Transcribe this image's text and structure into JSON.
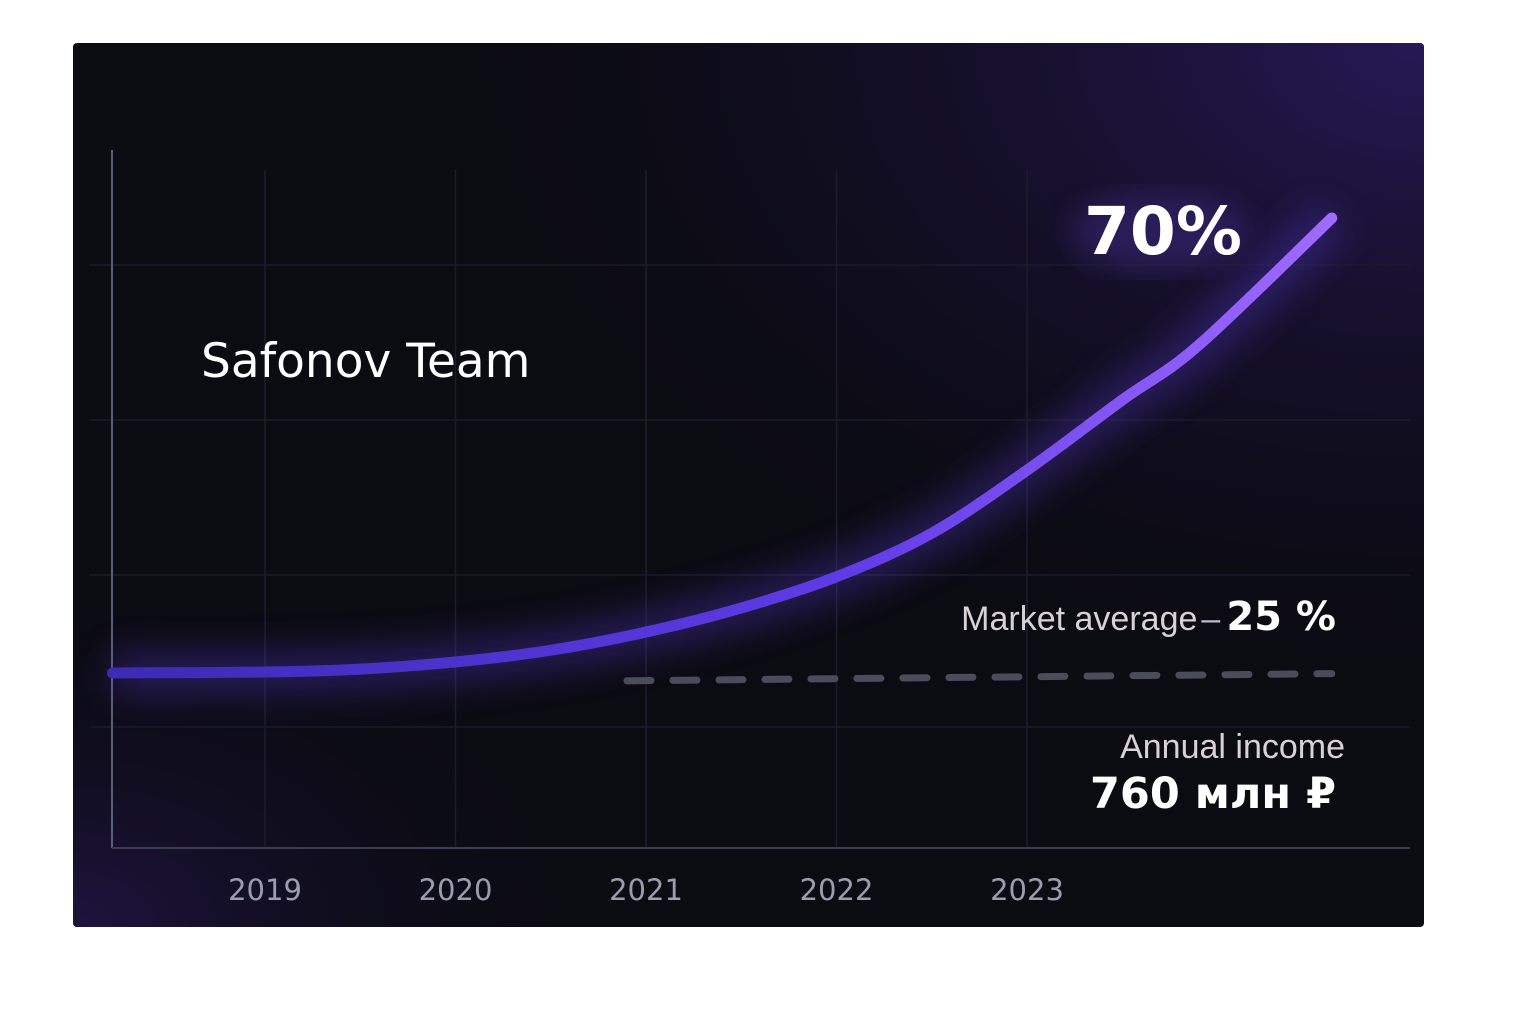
{
  "chart_data": {
    "type": "line",
    "title": "Safonov Team",
    "xlabel": "",
    "ylabel": "",
    "x_ticks": [
      "2019",
      "2020",
      "2021",
      "2022",
      "2023"
    ],
    "xlim": [
      2018.2,
      2024.7
    ],
    "ylim": [
      -26.9,
      80.5
    ],
    "grid": true,
    "series": [
      {
        "name": "Safonov Team",
        "style": "solid",
        "color": "#8b5cf6",
        "x": [
          2018.2,
          2019,
          2019.5,
          2020,
          2020.5,
          2021,
          2021.5,
          2022,
          2022.5,
          2023,
          2023.5,
          2023.9,
          2024.6
        ],
        "y": [
          0,
          0.15,
          0.6,
          1.7,
          3.5,
          6.3,
          10.0,
          14.8,
          21.5,
          31.2,
          42.0,
          50.4,
          70
        ]
      },
      {
        "name": "Market average",
        "style": "dashed",
        "color": "#4a4c5c",
        "x": [
          2020.9,
          2024.6
        ],
        "y": [
          -1.2,
          -0.1
        ]
      }
    ],
    "annotations": {
      "peak_value": "70%",
      "market_label": "Market average",
      "market_dash": "–",
      "market_value": "25 %",
      "income_label": "Annual income",
      "income_value": "760 млн ₽"
    }
  },
  "colors": {
    "background": "#0b0b12",
    "accent_start": "#4c2fd0",
    "accent_end": "#9b6bff"
  }
}
